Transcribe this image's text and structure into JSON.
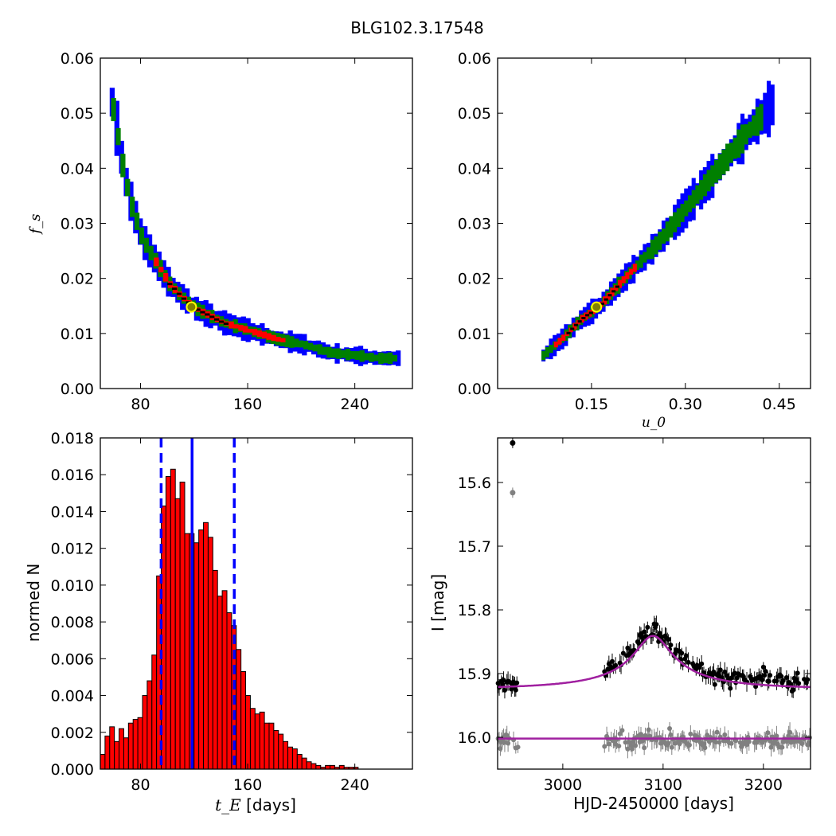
{
  "figure": {
    "suptitle": "BLG102.3.17548"
  },
  "chart_data": [
    {
      "type": "heatmap",
      "id": "fs_vs_tE",
      "title": "",
      "xlabel": "",
      "ylabel": "f_s",
      "xlim": [
        50,
        283
      ],
      "ylim": [
        0.0,
        0.06
      ],
      "xticks": [
        80,
        160,
        240
      ],
      "xtick_labels": [
        "80",
        "160",
        "240"
      ],
      "yticks": [
        0.0,
        0.01,
        0.02,
        0.03,
        0.04,
        0.05,
        0.06
      ],
      "ytick_labels": [
        "0.00",
        "0.01",
        "0.02",
        "0.03",
        "0.04",
        "0.05",
        "0.06"
      ],
      "colors": {
        "outer": "#0000ff",
        "middle": "#008000",
        "inner": "#ff0000",
        "core": "#000000",
        "marker_face": "#808000",
        "marker_edge": "#ffff00"
      },
      "ridge": {
        "x": [
          57,
          60,
          66,
          72,
          80,
          90,
          100,
          110,
          120,
          140,
          160,
          180,
          200,
          220,
          240,
          256,
          271
        ],
        "y": [
          0.052,
          0.048,
          0.039,
          0.033,
          0.027,
          0.023,
          0.019,
          0.0165,
          0.0145,
          0.012,
          0.0105,
          0.009,
          0.008,
          0.0065,
          0.006,
          0.0055,
          0.0055
        ]
      },
      "best_fit": {
        "x": 118,
        "y": 0.0148
      }
    },
    {
      "type": "heatmap",
      "id": "fs_vs_u0",
      "title": "",
      "xlabel": "u_0",
      "ylabel": "",
      "xlim": [
        0.0,
        0.5
      ],
      "ylim": [
        0.0,
        0.06
      ],
      "xticks": [
        0.15,
        0.3,
        0.45
      ],
      "xtick_labels": [
        "0.15",
        "0.30",
        "0.45"
      ],
      "yticks": [
        0.0,
        0.01,
        0.02,
        0.03,
        0.04,
        0.05,
        0.06
      ],
      "ytick_labels": [
        "0.00",
        "0.01",
        "0.02",
        "0.03",
        "0.04",
        "0.05",
        "0.06"
      ],
      "ridge": {
        "x": [
          0.07,
          0.1,
          0.13,
          0.16,
          0.2,
          0.25,
          0.3,
          0.35,
          0.4,
          0.44
        ],
        "y": [
          0.006,
          0.009,
          0.0125,
          0.015,
          0.02,
          0.026,
          0.033,
          0.04,
          0.047,
          0.052
        ]
      },
      "best_fit": {
        "x": 0.158,
        "y": 0.0148
      }
    },
    {
      "type": "bar",
      "id": "tE_histogram",
      "title": "",
      "xlabel": "t_E",
      "xlabel_suffix": " [days]",
      "ylabel": "normed N",
      "xlim": [
        50,
        283
      ],
      "ylim": [
        0.0,
        0.018
      ],
      "xticks": [
        80,
        160,
        240
      ],
      "xtick_labels": [
        "80",
        "160",
        "240"
      ],
      "yticks": [
        0.0,
        0.002,
        0.004,
        0.006,
        0.008,
        0.01,
        0.012,
        0.014,
        0.016,
        0.018
      ],
      "ytick_labels": [
        "0.000",
        "0.002",
        "0.004",
        "0.006",
        "0.008",
        "0.010",
        "0.012",
        "0.014",
        "0.016",
        "0.018"
      ],
      "bin_start": 50,
      "bin_width": 3.5,
      "values": [
        0.0008,
        0.0018,
        0.0023,
        0.0015,
        0.0022,
        0.0017,
        0.0025,
        0.0027,
        0.0028,
        0.004,
        0.0048,
        0.0062,
        0.0105,
        0.0143,
        0.0159,
        0.0163,
        0.0147,
        0.0156,
        0.0128,
        0.0128,
        0.0123,
        0.013,
        0.0134,
        0.0126,
        0.0108,
        0.0094,
        0.0097,
        0.0085,
        0.0078,
        0.0065,
        0.0053,
        0.004,
        0.0033,
        0.003,
        0.0031,
        0.0025,
        0.0025,
        0.0021,
        0.0019,
        0.0015,
        0.0012,
        0.0011,
        0.0008,
        0.0006,
        0.0004,
        0.0003,
        0.0002,
        0.0001,
        0.0002,
        0.0002,
        0.0001,
        0.0002,
        0.0001,
        0.0001,
        0.0001,
        0.0,
        0.0,
        0.0,
        0.0,
        0.0,
        0.0,
        0.0,
        0.0
      ],
      "bar_color": "#ff0000",
      "vlines": [
        {
          "x": 95.4,
          "style": "dashed",
          "color": "#0000ff"
        },
        {
          "x": 118.5,
          "style": "solid",
          "color": "#0000ff"
        },
        {
          "x": 150.0,
          "style": "dashed",
          "color": "#0000ff"
        }
      ]
    },
    {
      "type": "scatter",
      "id": "lightcurve",
      "title": "",
      "xlabel": "HJD-2450000 [days]",
      "ylabel": "I [mag]",
      "xlim": [
        2935,
        3247
      ],
      "ylim": [
        16.05,
        15.53
      ],
      "y_inverted": true,
      "xticks": [
        3000,
        3100,
        3200
      ],
      "xtick_labels": [
        "3000",
        "3100",
        "3200"
      ],
      "yticks": [
        15.6,
        15.7,
        15.8,
        15.9,
        16.0
      ],
      "ytick_labels": [
        "15.6",
        "15.7",
        "15.8",
        "15.9",
        "16.0"
      ],
      "series": [
        {
          "color": "#000000",
          "baseline": 15.915,
          "peak_t": 3095,
          "peak_mag": 15.853,
          "outliers": [
            {
              "x": 2950,
              "y": 15.538
            }
          ]
        },
        {
          "color": "#808080",
          "baseline": 16.005,
          "peak_t": 3095,
          "peak_mag": 16.005,
          "outliers": [
            {
              "x": 2950,
              "y": 15.616
            }
          ]
        }
      ],
      "model": {
        "color": "#a020a0",
        "t0": 3090,
        "u0": 0.158,
        "tE": 118,
        "fs": 0.0148,
        "baseline": 15.924,
        "flat": 16.002
      },
      "time_ranges": [
        [
          2935,
          2956
        ],
        [
          3040,
          3247
        ]
      ]
    }
  ]
}
